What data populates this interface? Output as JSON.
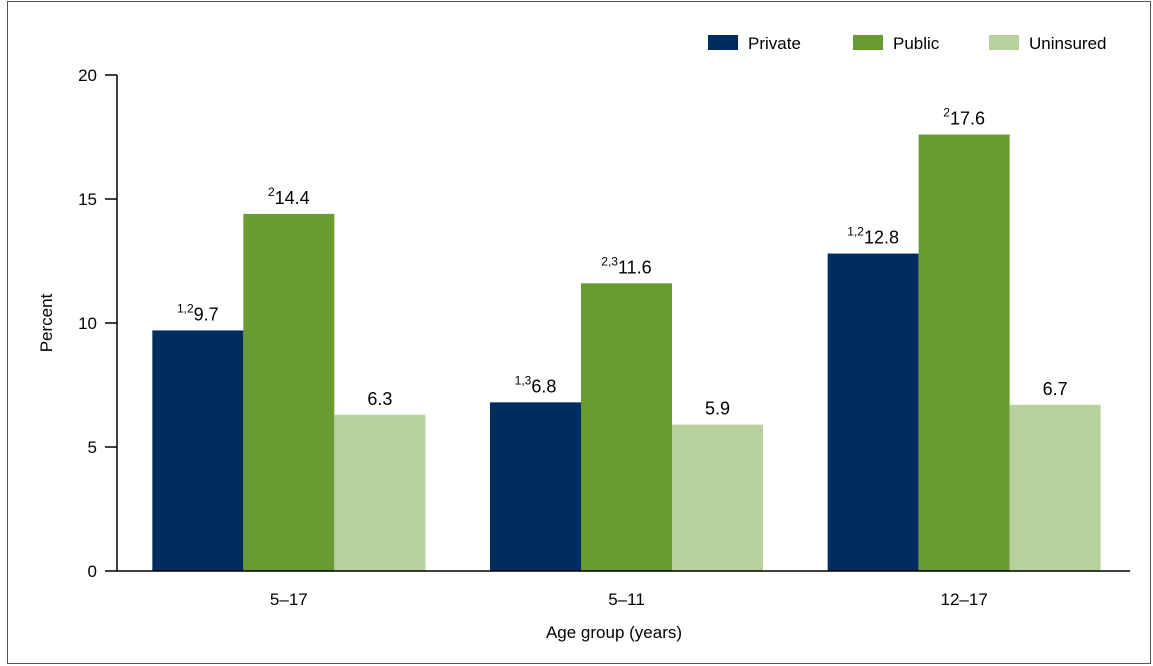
{
  "chart_data": {
    "type": "bar",
    "xlabel": "Age group (years)",
    "ylabel": "Percent",
    "ylim": [
      0,
      20
    ],
    "yticks": [
      0,
      5,
      10,
      15,
      20
    ],
    "categories": [
      "5–17",
      "5–11",
      "12–17"
    ],
    "legend_position": "top-right",
    "grid": false,
    "series": [
      {
        "name": "Private",
        "color": "#002d5f",
        "values": [
          9.7,
          6.8,
          12.8
        ],
        "notes": [
          "1,2",
          "1,3",
          "1,2"
        ]
      },
      {
        "name": "Public",
        "color": "#6a9b32",
        "values": [
          14.4,
          11.6,
          17.6
        ],
        "notes": [
          "2",
          "2,3",
          "2"
        ]
      },
      {
        "name": "Uninsured",
        "color": "#b6d19b",
        "values": [
          6.3,
          5.9,
          6.7
        ],
        "notes": [
          "",
          "",
          ""
        ]
      }
    ]
  }
}
